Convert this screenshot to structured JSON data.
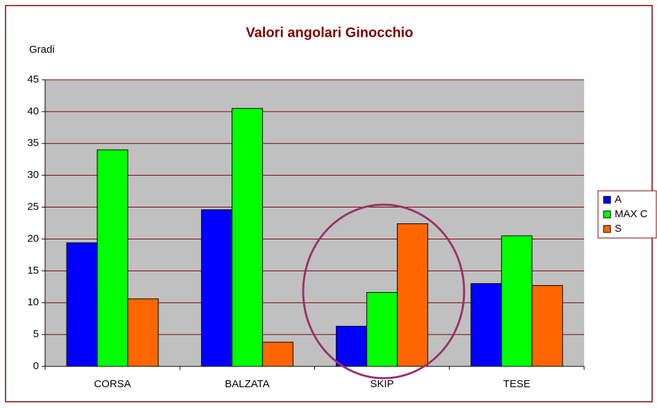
{
  "chart_data": {
    "type": "bar",
    "title": "Valori angolari Ginocchio",
    "y_label": "Gradi",
    "categories": [
      "CORSA",
      "BALZATA",
      "SKIP",
      "TESE"
    ],
    "series": [
      {
        "name": "A",
        "color": "#0000ff",
        "values": [
          19.4,
          24.6,
          6.3,
          13
        ]
      },
      {
        "name": "MAX C",
        "color": "#00ff00",
        "values": [
          34,
          40.5,
          11.6,
          20.5
        ]
      },
      {
        "name": "S",
        "color": "#ff6600",
        "values": [
          10.6,
          3.8,
          22.4,
          12.7
        ]
      }
    ],
    "ylim": [
      0,
      45
    ],
    "yticks": [
      0,
      5,
      10,
      15,
      20,
      25,
      30,
      35,
      40,
      45
    ],
    "grid": true,
    "legend": "right"
  }
}
